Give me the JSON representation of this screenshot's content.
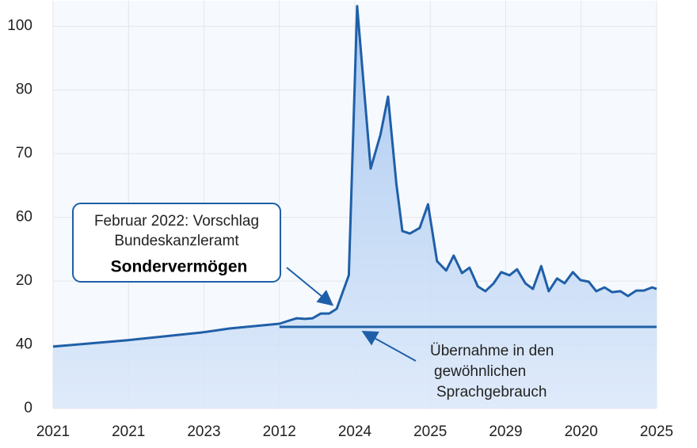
{
  "chart_data": {
    "type": "line",
    "xlim": [
      0,
      8
    ],
    "xticks": [
      {
        "value": 0,
        "label": "2021"
      },
      {
        "value": 1,
        "label": "2021"
      },
      {
        "value": 2,
        "label": "2023"
      },
      {
        "value": 3,
        "label": "2012"
      },
      {
        "value": 4,
        "label": "2024"
      },
      {
        "value": 5,
        "label": "2025"
      },
      {
        "value": 6,
        "label": "2029"
      },
      {
        "value": 7,
        "label": "2020"
      },
      {
        "value": 8,
        "label": "2025"
      }
    ],
    "ylim": [
      0,
      128
    ],
    "yticks": [
      0,
      {
        "value": 20,
        "label": "40"
      },
      {
        "value": 40,
        "label": "20"
      },
      60,
      {
        "value": 80,
        "label": "70"
      },
      {
        "value": 100,
        "label": "80"
      },
      {
        "value": 120,
        "label": "100"
      }
    ],
    "grid": true,
    "series": [
      {
        "color": "#1f5fa8",
        "x": [
          0,
          0.98,
          1.99,
          2.34,
          3.0,
          3.13,
          3.23,
          3.34,
          3.44,
          3.55,
          3.66,
          3.76,
          3.92,
          4.03,
          4.21,
          4.34,
          4.44,
          4.55,
          4.63,
          4.73,
          4.86,
          4.97,
          5.09,
          5.21,
          5.31,
          5.42,
          5.52,
          5.63,
          5.73,
          5.84,
          5.94,
          6.05,
          6.15,
          6.26,
          6.36,
          6.47,
          6.57,
          6.68,
          6.78,
          6.89,
          6.99,
          7.1,
          7.2,
          7.31,
          7.41,
          7.52,
          7.62,
          7.73,
          7.83,
          7.94,
          8.0
        ],
        "values": [
          19.4,
          21.4,
          23.9,
          25.1,
          26.6,
          27.6,
          28.3,
          28.1,
          28.3,
          29.8,
          29.8,
          31.3,
          41.8,
          126.3,
          75.3,
          86.0,
          97.9,
          70.6,
          55.7,
          54.9,
          56.7,
          64.1,
          46.2,
          43.3,
          48.0,
          42.5,
          44.2,
          38.3,
          36.8,
          39.3,
          42.8,
          41.8,
          43.7,
          39.3,
          37.5,
          44.7,
          36.8,
          40.8,
          39.3,
          42.8,
          40.3,
          39.8,
          36.8,
          38.0,
          36.5,
          36.8,
          35.3,
          37.0,
          37.0,
          38.0,
          37.5
        ]
      },
      {
        "color": "#1f5fa8",
        "x": [
          3.0,
          8.0
        ],
        "values": [
          25.6,
          25.6
        ]
      }
    ],
    "annotations": [
      {
        "lines": [
          "Februar 2022: Vorschlag",
          "Bundeskanzleramt",
          "Sondervermögen"
        ]
      },
      {
        "lines": [
          "Übernahme in den",
          "gewöhnlichen",
          "Sprachgebrauch"
        ]
      }
    ]
  }
}
